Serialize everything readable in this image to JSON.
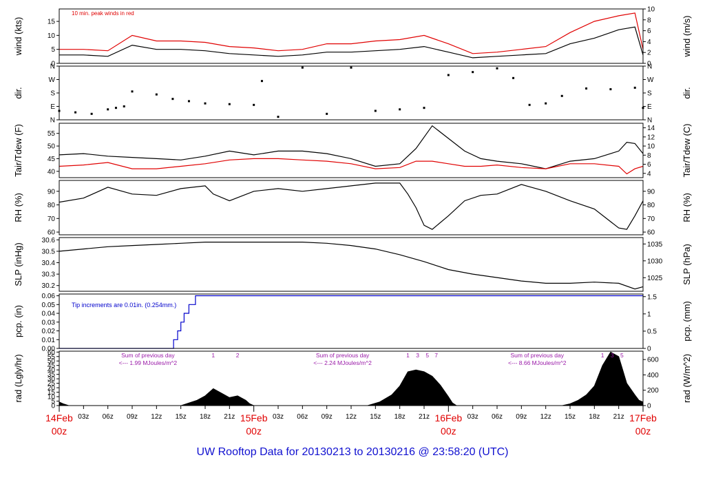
{
  "footer_title": "UW Rooftop Data for 20130213  to  20130216 @ 23:58:20  (UTC)",
  "colors": {
    "frame": "#000000",
    "red": "#e00000",
    "blue": "#0000cc",
    "purple": "#9a1aa8",
    "title_blue": "#1010d0"
  },
  "time_axis": {
    "day_labels": [
      {
        "top": "14Feb",
        "bottom": "00z",
        "hour": 0
      },
      {
        "top": "15Feb",
        "bottom": "00z",
        "hour": 24
      },
      {
        "top": "16Feb",
        "bottom": "00z",
        "hour": 48
      },
      {
        "top": "17Feb",
        "bottom": "00z",
        "hour": 72
      }
    ],
    "hour_ticks": [
      {
        "hour": 3,
        "label": "03z"
      },
      {
        "hour": 6,
        "label": "06z"
      },
      {
        "hour": 9,
        "label": "09z"
      },
      {
        "hour": 12,
        "label": "12z"
      },
      {
        "hour": 15,
        "label": "15z"
      },
      {
        "hour": 18,
        "label": "18z"
      },
      {
        "hour": 21,
        "label": "21z"
      },
      {
        "hour": 27,
        "label": "03z"
      },
      {
        "hour": 30,
        "label": "06z"
      },
      {
        "hour": 33,
        "label": "09z"
      },
      {
        "hour": 36,
        "label": "12z"
      },
      {
        "hour": 39,
        "label": "15z"
      },
      {
        "hour": 42,
        "label": "18z"
      },
      {
        "hour": 45,
        "label": "21z"
      },
      {
        "hour": 51,
        "label": "03z"
      },
      {
        "hour": 54,
        "label": "06z"
      },
      {
        "hour": 57,
        "label": "09z"
      },
      {
        "hour": 60,
        "label": "12z"
      },
      {
        "hour": 63,
        "label": "15z"
      },
      {
        "hour": 66,
        "label": "18z"
      },
      {
        "hour": 69,
        "label": "21z"
      }
    ]
  },
  "chart_data": [
    {
      "id": "wind",
      "type": "line",
      "ylabel": "wind (kts)",
      "ylabel_right": "wind (m/s)",
      "left_ticks": [
        "0",
        "5",
        "10",
        "15"
      ],
      "right_ticks": [
        "0",
        "2",
        "4",
        "6",
        "8",
        "10"
      ],
      "ylim": [
        0,
        19.44
      ],
      "ylim_right": [
        0,
        10
      ],
      "annotation": "10 min. peak winds in red",
      "series": [
        {
          "color": "#000000",
          "hours": [
            0,
            3,
            6,
            9,
            12,
            15,
            18,
            21,
            24,
            27,
            30,
            33,
            36,
            39,
            42,
            45,
            48,
            51,
            54,
            57,
            60,
            63,
            66,
            69,
            71,
            72
          ],
          "values": [
            3,
            3,
            2.5,
            6.5,
            5,
            5,
            4.5,
            3.5,
            3,
            2.5,
            3,
            4,
            4,
            4.5,
            5,
            6,
            4,
            2,
            2.5,
            3,
            3.5,
            7,
            9,
            12,
            13,
            3
          ]
        },
        {
          "color": "#e00000",
          "hours": [
            0,
            3,
            6,
            9,
            12,
            15,
            18,
            21,
            24,
            27,
            30,
            33,
            36,
            39,
            42,
            45,
            48,
            51,
            54,
            57,
            60,
            63,
            66,
            69,
            71,
            72
          ],
          "values": [
            5,
            5,
            4.5,
            10,
            8,
            8,
            7.5,
            6,
            5.5,
            4.5,
            5,
            7,
            7,
            8,
            8.5,
            10,
            7,
            3.5,
            4,
            5,
            6,
            11,
            15,
            17,
            18,
            5
          ]
        }
      ]
    },
    {
      "id": "dir",
      "type": "scatter",
      "ylabel": "dir.",
      "ylabel_right": "dir.",
      "left_ticks": [
        "N",
        "E",
        "S",
        "W",
        "N"
      ],
      "right_ticks": [
        "N",
        "E",
        "S",
        "W",
        "N"
      ],
      "ylim": [
        0,
        360
      ],
      "series": [
        {
          "color": "#000000",
          "hours": [
            0,
            2,
            4,
            6,
            7,
            8,
            9,
            12,
            14,
            16,
            18,
            21,
            24,
            25,
            27,
            30,
            33,
            36,
            39,
            42,
            45,
            48,
            51,
            54,
            56,
            58,
            60,
            62,
            65,
            68,
            71,
            72
          ],
          "values": [
            60,
            50,
            40,
            70,
            80,
            90,
            190,
            170,
            140,
            125,
            110,
            105,
            100,
            260,
            20,
            350,
            40,
            350,
            60,
            70,
            80,
            300,
            320,
            345,
            280,
            100,
            110,
            160,
            210,
            205,
            215,
            80
          ]
        }
      ]
    },
    {
      "id": "temp",
      "type": "line",
      "ylabel": "Tair/Tdew (F)",
      "ylabel_right": "Tair/Tdew (C)",
      "left_ticks": [
        "40",
        "45",
        "50",
        "55"
      ],
      "right_ticks": [
        "4",
        "6",
        "8",
        "10",
        "12",
        "14"
      ],
      "ylim": [
        37.5,
        59
      ],
      "ylim_right": [
        3.06,
        15
      ],
      "series": [
        {
          "color": "#000000",
          "hours": [
            0,
            3,
            6,
            9,
            12,
            15,
            18,
            21,
            24,
            27,
            30,
            33,
            36,
            39,
            42,
            44,
            46,
            48,
            50,
            52,
            54,
            57,
            60,
            63,
            66,
            69,
            70,
            71,
            72
          ],
          "values": [
            46.5,
            47,
            46,
            45.5,
            45,
            44.5,
            46,
            48,
            46.5,
            48,
            48,
            47,
            45,
            42,
            43,
            49,
            58,
            53,
            48,
            45,
            44,
            43,
            41,
            44,
            45,
            48,
            51.5,
            51,
            47
          ]
        },
        {
          "color": "#e00000",
          "hours": [
            0,
            3,
            6,
            9,
            12,
            15,
            18,
            21,
            24,
            27,
            30,
            33,
            36,
            39,
            42,
            44,
            46,
            48,
            50,
            52,
            54,
            57,
            60,
            63,
            66,
            69,
            70,
            71,
            72
          ],
          "values": [
            42,
            42.5,
            43.5,
            41,
            41,
            42,
            43,
            44.5,
            45,
            45,
            44.5,
            44,
            43,
            41,
            41.5,
            44,
            44,
            43,
            42,
            42,
            42.5,
            41.5,
            41,
            43,
            43,
            42,
            39,
            41,
            42
          ]
        }
      ]
    },
    {
      "id": "rh",
      "type": "line",
      "ylabel": "RH (%)",
      "ylabel_right": "RH (%)",
      "left_ticks": [
        "60",
        "70",
        "80",
        "90"
      ],
      "right_ticks": [
        "60",
        "70",
        "80",
        "90"
      ],
      "ylim": [
        58,
        98
      ],
      "ylim_right": [
        58,
        98
      ],
      "series": [
        {
          "color": "#000000",
          "hours": [
            0,
            3,
            6,
            9,
            12,
            15,
            18,
            19,
            21,
            24,
            27,
            30,
            33,
            36,
            39,
            42,
            43,
            44,
            45,
            46,
            48,
            50,
            52,
            54,
            57,
            60,
            63,
            66,
            69,
            70,
            71,
            72
          ],
          "values": [
            82,
            85,
            93,
            88,
            87,
            92,
            94,
            88,
            83,
            90,
            92,
            90,
            92,
            94,
            96,
            96,
            88,
            78,
            65,
            62,
            72,
            83,
            87,
            88,
            95,
            90,
            83,
            77,
            63,
            62,
            72,
            83
          ]
        }
      ]
    },
    {
      "id": "slp",
      "type": "line",
      "ylabel": "SLP (inHg)",
      "ylabel_right": "SLP (hPa)",
      "left_ticks": [
        "30.2",
        "30.3",
        "30.4",
        "30.5",
        "30.6"
      ],
      "right_ticks": [
        "1025",
        "1030",
        "1035"
      ],
      "ylim": [
        30.15,
        30.62
      ],
      "ylim_right": [
        1020.98,
        1036.9
      ],
      "series": [
        {
          "color": "#000000",
          "hours": [
            0,
            3,
            6,
            9,
            12,
            15,
            18,
            21,
            24,
            27,
            30,
            33,
            36,
            39,
            42,
            45,
            48,
            51,
            54,
            57,
            60,
            63,
            66,
            69,
            71,
            72
          ],
          "values": [
            30.5,
            30.52,
            30.54,
            30.55,
            30.56,
            30.57,
            30.58,
            30.58,
            30.58,
            30.58,
            30.58,
            30.57,
            30.55,
            30.52,
            30.47,
            30.41,
            30.34,
            30.3,
            30.27,
            30.24,
            30.22,
            30.22,
            30.23,
            30.22,
            30.17,
            30.19
          ]
        }
      ]
    },
    {
      "id": "pcp",
      "type": "line",
      "ylabel": "pcp. (in)",
      "ylabel_right": "pcp. (mm)",
      "left_ticks": [
        "0.00",
        "0.01",
        "0.02",
        "0.03",
        "0.04",
        "0.05",
        "0.06"
      ],
      "right_ticks": [
        "0",
        "0.5",
        "1",
        "1.5"
      ],
      "ylim": [
        0,
        0.062
      ],
      "ylim_right": [
        0,
        1.575
      ],
      "annotation": "Tip increments are 0.01in. (0.254mm.)",
      "series": [
        {
          "color": "#0000cc",
          "hours": [
            0,
            14.1,
            14.1,
            14.6,
            14.6,
            15.0,
            15.0,
            15.4,
            15.4,
            16.0,
            16.0,
            16.8,
            16.8,
            72
          ],
          "values": [
            0,
            0,
            0.01,
            0.01,
            0.02,
            0.02,
            0.03,
            0.03,
            0.04,
            0.04,
            0.05,
            0.05,
            0.06,
            0.06
          ]
        }
      ]
    },
    {
      "id": "rad",
      "type": "area",
      "ylabel": "rad (Lgly/hr)",
      "ylabel_right": "rad (W/m^2)",
      "left_ticks": [
        "0",
        "5",
        "10",
        "15",
        "20",
        "25",
        "30",
        "35",
        "40",
        "45",
        "50",
        "55",
        "60"
      ],
      "right_ticks": [
        "0",
        "200",
        "400",
        "600"
      ],
      "ylim": [
        0,
        61
      ],
      "ylim_right": [
        0,
        709.3
      ],
      "annotations": [
        {
          "hour": 9.5,
          "lines": [
            "Sum of previous day",
            "<--- 1.99 MJoules/m^2"
          ]
        },
        {
          "hour": 33.5,
          "lines": [
            "Sum of previous day",
            "<--- 2.24 MJoules/m^2"
          ]
        },
        {
          "hour": 57.5,
          "lines": [
            "Sum of previous day",
            "<--- 8.66 MJoules/m^2"
          ]
        }
      ],
      "hour_markers": [
        {
          "day": 0,
          "labels": [
            "1",
            "2"
          ],
          "hours": [
            19,
            22
          ]
        },
        {
          "day": 1,
          "labels": [
            "1",
            "3",
            "5",
            "7"
          ],
          "hours": [
            43,
            44.2,
            45.4,
            46.5
          ]
        },
        {
          "day": 2,
          "labels": [
            "1",
            "3",
            "5"
          ],
          "hours": [
            67,
            68.2,
            69.4
          ]
        }
      ],
      "series": [
        {
          "color": "#000000",
          "hours": [
            0,
            0.5,
            1.2,
            15,
            16,
            17,
            18,
            19,
            20,
            21,
            22,
            23,
            23.5,
            24,
            38,
            39.5,
            41,
            42,
            43,
            44,
            45,
            46,
            47,
            48,
            48.5,
            49,
            62,
            63,
            64,
            65,
            66,
            67,
            68,
            69,
            69.5,
            70,
            71,
            71.5,
            72
          ],
          "values": [
            4,
            2,
            0,
            0,
            3,
            6,
            11,
            19,
            14,
            9,
            11,
            6,
            2,
            0,
            0,
            4,
            12,
            22,
            38,
            40,
            38,
            33,
            23,
            10,
            3,
            0,
            0,
            2,
            6,
            12,
            22,
            45,
            60,
            55,
            40,
            25,
            12,
            6,
            4
          ]
        }
      ]
    }
  ]
}
